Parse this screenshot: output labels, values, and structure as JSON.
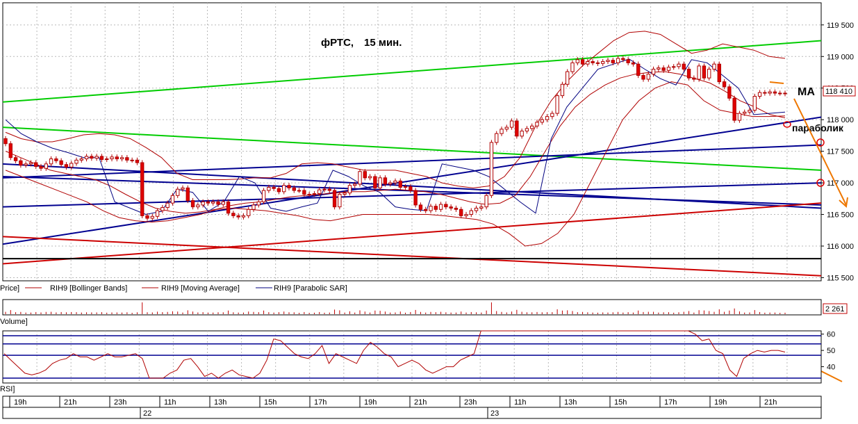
{
  "chart_data": {
    "type": "candlestick",
    "title": "фРТС,",
    "subtitle": "15 мин.",
    "instrument": "RIH9",
    "price_pane": {
      "ylim": [
        115450,
        119850
      ],
      "yticks": [
        115500,
        116000,
        116500,
        117000,
        117500,
        118000,
        118500,
        119000,
        119500
      ],
      "ytick_labels": [
        "115 500",
        "116 000",
        "116 500",
        "117 000",
        "117 500",
        "118 000",
        "118 500",
        "119 000",
        "119 500"
      ],
      "last_price": 118410,
      "last_price_label": "118 410",
      "grid": true,
      "legend": [
        {
          "label": "Price]",
          "color": "#000000"
        },
        {
          "label": "RIH9 [Bollinger Bands]",
          "color": "#b00000"
        },
        {
          "label": "RIH9 [Moving Average]",
          "color": "#b00000"
        },
        {
          "label": "RIH9 [Parabolic SAR]",
          "color": "#000080"
        }
      ],
      "closes": [
        117620,
        117400,
        117350,
        117280,
        117300,
        117320,
        117260,
        117230,
        117300,
        117380,
        117350,
        117290,
        117250,
        117310,
        117360,
        117380,
        117420,
        117390,
        117420,
        117370,
        117380,
        117410,
        117380,
        117400,
        117360,
        117360,
        117320,
        116480,
        116440,
        116470,
        116560,
        116610,
        116680,
        116800,
        116900,
        116920,
        116720,
        116620,
        116650,
        116700,
        116680,
        116700,
        116660,
        116700,
        116520,
        116480,
        116460,
        116480,
        116580,
        116650,
        116700,
        116880,
        116930,
        116910,
        116860,
        116960,
        116920,
        116880,
        116880,
        116820,
        116820,
        116830,
        116890,
        116900,
        116880,
        116620,
        116820,
        116840,
        116960,
        116980,
        117180,
        117080,
        117100,
        116920,
        117080,
        116980,
        117000,
        117030,
        116930,
        116940,
        116880,
        116650,
        116580,
        116560,
        116630,
        116580,
        116660,
        116620,
        116600,
        116580,
        116480,
        116500,
        116560,
        116600,
        116620,
        116800,
        117640,
        117780,
        117850,
        117880,
        117980,
        117740,
        117820,
        117860,
        117900,
        117960,
        118000,
        118050,
        118100,
        118380,
        118560,
        118760,
        118900,
        118950,
        118880,
        118920,
        118900,
        118890,
        118920,
        118940,
        118900,
        118970,
        118950,
        118900,
        118880,
        118700,
        118640,
        118720,
        118800,
        118820,
        118780,
        118830,
        118840,
        118880,
        118800,
        118660,
        118640,
        118850,
        118660,
        118800,
        118880,
        118600,
        118520,
        118340,
        117990,
        118100,
        118120,
        118150,
        118370,
        118430,
        118420,
        118440,
        118420,
        118420,
        118410
      ],
      "moving_average": [
        117500,
        117400,
        117300,
        117200,
        117150,
        117100,
        117050,
        116950,
        116820,
        116700,
        116600,
        116550,
        116520,
        116540,
        116580,
        116640,
        116680,
        116700,
        116740,
        116780,
        116800,
        116820,
        116840,
        116860,
        116860,
        116880,
        116900,
        116880,
        116860,
        116820,
        116760,
        116700,
        116660,
        116680,
        116800,
        117100,
        117500,
        117900,
        118200,
        118400,
        118550,
        118660,
        118720,
        118750,
        118760,
        118720,
        118650,
        118580,
        118450,
        118300,
        118200,
        118080,
        118030
      ],
      "bollinger_upper": [
        117800,
        117700,
        117650,
        117650,
        117700,
        117760,
        117780,
        117760,
        117700,
        117560,
        117400,
        117150,
        117050,
        117050,
        117050,
        117060,
        117080,
        117080,
        117150,
        117300,
        117320,
        117300,
        117250,
        117200,
        117200,
        117200,
        117150,
        117100,
        117000,
        116950,
        116920,
        116950,
        117100,
        117400,
        117900,
        118300,
        118600,
        118850,
        119050,
        119250,
        119380,
        119400,
        119350,
        119200,
        119050,
        119100,
        119200,
        119150,
        119100,
        119000,
        118970
      ],
      "bollinger_lower": [
        117200,
        117100,
        117000,
        116900,
        116800,
        116700,
        116560,
        116450,
        116400,
        116380,
        116400,
        116450,
        116500,
        116580,
        116600,
        116580,
        116560,
        116520,
        116480,
        116420,
        116400,
        116450,
        116500,
        116500,
        116500,
        116500,
        116500,
        116480,
        116450,
        116420,
        116350,
        116200,
        116000,
        116040,
        116200,
        116500,
        117000,
        117500,
        118000,
        118300,
        118500,
        118600,
        118550,
        118300,
        118150,
        118100,
        118050,
        118050,
        118060
      ],
      "parabolic_sar": [
        118000,
        117780,
        117650,
        117550,
        117480,
        117400,
        117400,
        116700,
        116600,
        116500,
        116550,
        116900,
        116850,
        116550,
        116700,
        117100,
        117000,
        116600,
        116550,
        116620,
        116680,
        117200,
        117100,
        116950,
        116850,
        116620,
        116580,
        116560,
        117300,
        117250,
        117200,
        117100,
        116900,
        116700,
        116520,
        117700,
        118200,
        118500,
        118800,
        118880,
        118960,
        118800,
        118650,
        118550,
        118950,
        118900,
        118700,
        118500,
        118080,
        118100,
        118120
      ],
      "reference_lines": [
        {
          "color": "#00cc00",
          "from": 118280,
          "to": 119250
        },
        {
          "color": "#00cc00",
          "from": 117880,
          "to": 117200
        },
        {
          "color": "#000090",
          "from": 117080,
          "to": 117600
        },
        {
          "color": "#000090",
          "from": 116620,
          "to": 117000
        },
        {
          "color": "#000090",
          "from": 116030,
          "to": 118040
        },
        {
          "color": "#000090",
          "from": 117300,
          "to": 116600
        },
        {
          "color": "#000090",
          "from": 117100,
          "to": 116650
        },
        {
          "color": "#cc0000",
          "from": 115720,
          "to": 116680
        },
        {
          "color": "#cc0000",
          "from": 116150,
          "to": 115530
        },
        {
          "color": "#000000",
          "from": 115800,
          "to": 115800
        }
      ],
      "annotations": [
        {
          "text": "МА"
        },
        {
          "text": "параболик"
        }
      ]
    },
    "volume_pane": {
      "label": "Volume]",
      "last_label": "2 261"
    },
    "rsi_pane": {
      "label": "RSI]",
      "ylim": [
        30,
        62
      ],
      "yticks": [
        40,
        50,
        60
      ],
      "ytick_labels": [
        "40",
        "50",
        "60"
      ],
      "levels": [
        59,
        54,
        47,
        33
      ],
      "values": [
        48,
        44,
        40,
        36,
        35,
        36,
        38,
        42,
        44,
        45,
        48,
        46,
        46,
        44,
        46,
        48,
        46,
        46,
        47,
        48,
        45,
        33,
        33,
        33,
        36,
        38,
        44,
        45,
        40,
        34,
        36,
        33,
        36,
        38,
        35,
        34,
        33,
        36,
        44,
        57,
        56,
        52,
        48,
        46,
        45,
        48,
        53,
        42,
        48,
        46,
        44,
        42,
        50,
        55,
        52,
        48,
        46,
        40,
        42,
        44,
        42,
        38,
        36,
        38,
        40,
        40,
        44,
        46,
        48,
        62,
        62,
        62,
        62,
        62,
        62,
        62,
        62,
        62,
        62,
        62,
        62,
        62,
        62,
        62,
        62,
        62,
        62,
        62,
        62,
        62,
        62,
        62,
        62,
        62,
        62,
        62,
        62,
        62,
        62,
        62,
        60,
        56,
        57,
        50,
        48,
        38,
        34,
        45,
        48,
        50,
        49,
        50,
        50,
        49
      ]
    },
    "time_axis": {
      "labels": [
        "19h",
        "21h",
        "23h",
        "11h",
        "13h",
        "15h",
        "17h",
        "19h",
        "21h",
        "23h",
        "11h",
        "13h",
        "15h",
        "17h",
        "19h",
        "21h"
      ],
      "dates": [
        "22",
        "23"
      ]
    }
  }
}
